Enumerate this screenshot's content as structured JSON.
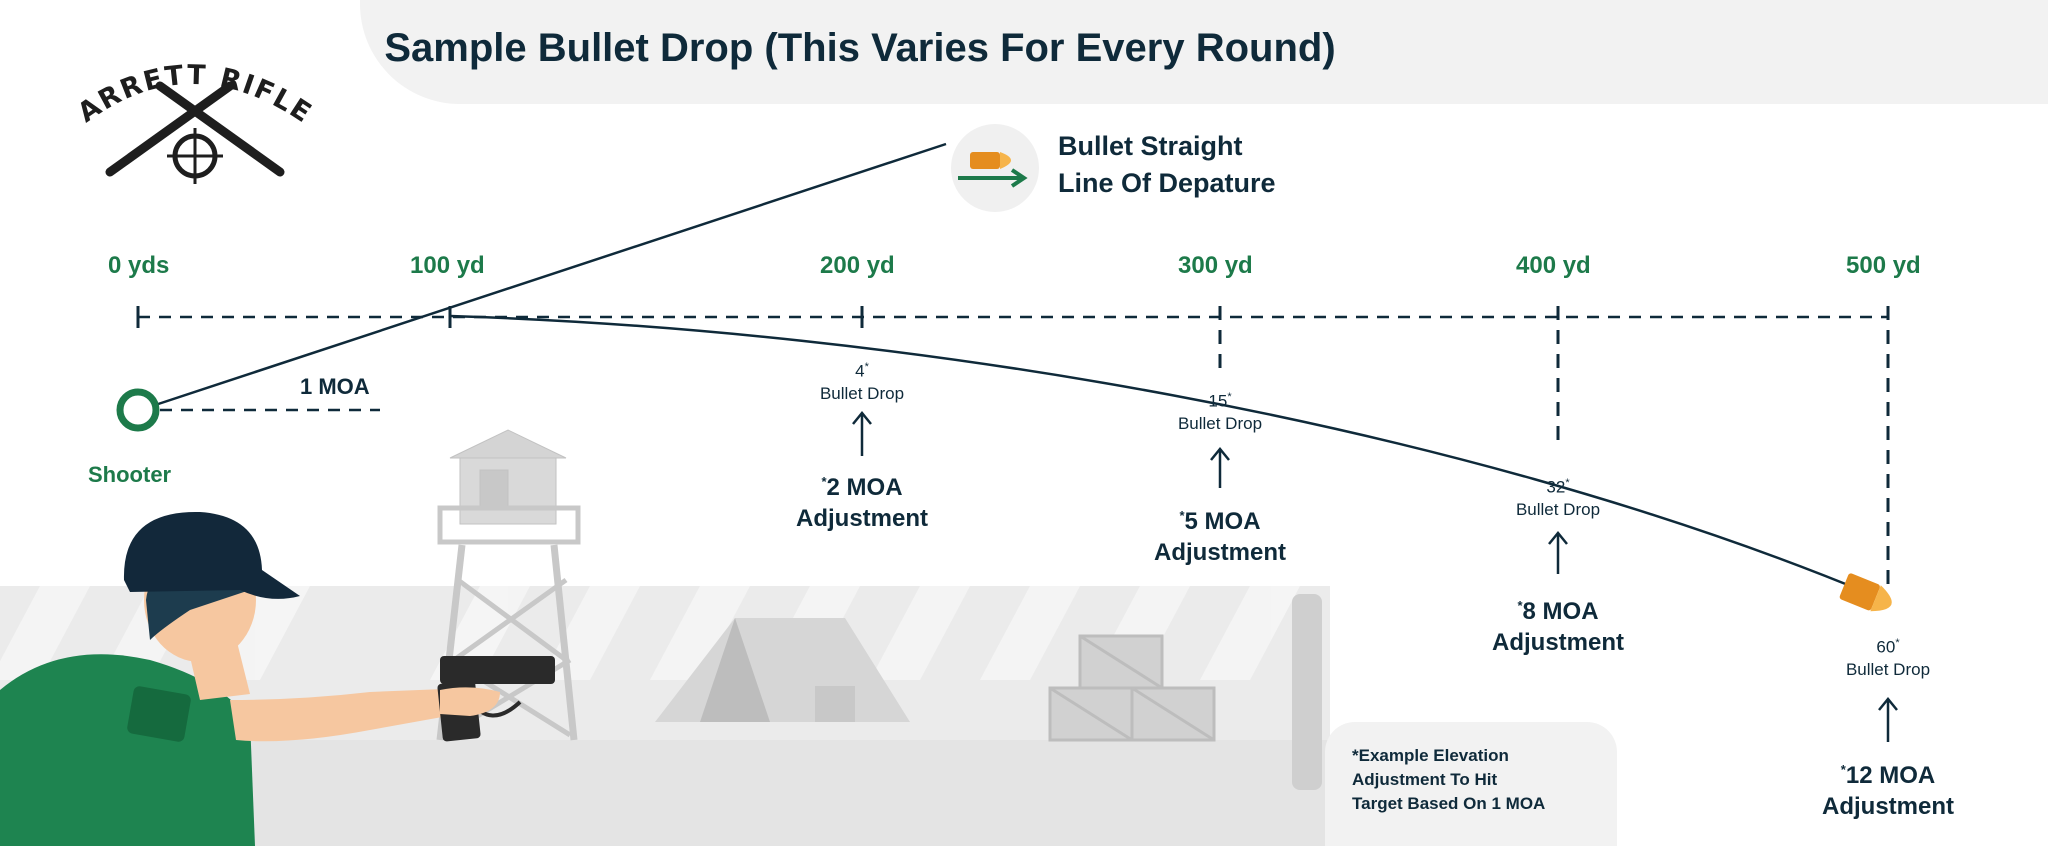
{
  "title": "Sample Bullet Drop (This Varies For Every Round)",
  "logo": {
    "line1": "BARRETT RIFLES"
  },
  "bullet_label": {
    "line1": "Bullet Straight",
    "line2": "Line Of Depature"
  },
  "shooter_label": "Shooter",
  "moa_label": "1 MOA",
  "yards": [
    {
      "label": "0 yds"
    },
    {
      "label": "100 yd"
    },
    {
      "label": "200 yd"
    },
    {
      "label": "300 yd"
    },
    {
      "label": "400 yd"
    },
    {
      "label": "500 yd"
    }
  ],
  "drops": [
    {
      "value": "4",
      "mark": "*",
      "drop_label": "Bullet Drop",
      "adj_mark": "*",
      "adj_line1": "2 MOA",
      "adj_line2": "Adjustment"
    },
    {
      "value": "15",
      "mark": "*",
      "drop_label": "Bullet Drop",
      "adj_mark": "*",
      "adj_line1": "5 MOA",
      "adj_line2": "Adjustment"
    },
    {
      "value": "32",
      "mark": "*",
      "drop_label": "Bullet Drop",
      "adj_mark": "*",
      "adj_line1": "8 MOA",
      "adj_line2": "Adjustment"
    },
    {
      "value": "60",
      "mark": "*",
      "drop_label": "Bullet Drop",
      "adj_mark": "*",
      "adj_line1": "12 MOA",
      "adj_line2": "Adjustment"
    }
  ],
  "footnote": {
    "line1": "*Example Elevation",
    "line2": "Adjustment To Hit",
    "line3": "Target Based On 1 MOA"
  },
  "colors": {
    "navy": "#0f2a3a",
    "green": "#1d7a4a",
    "orange": "#f2a33a",
    "gray": "#e6e6e6",
    "skin": "#f6c7a0"
  }
}
